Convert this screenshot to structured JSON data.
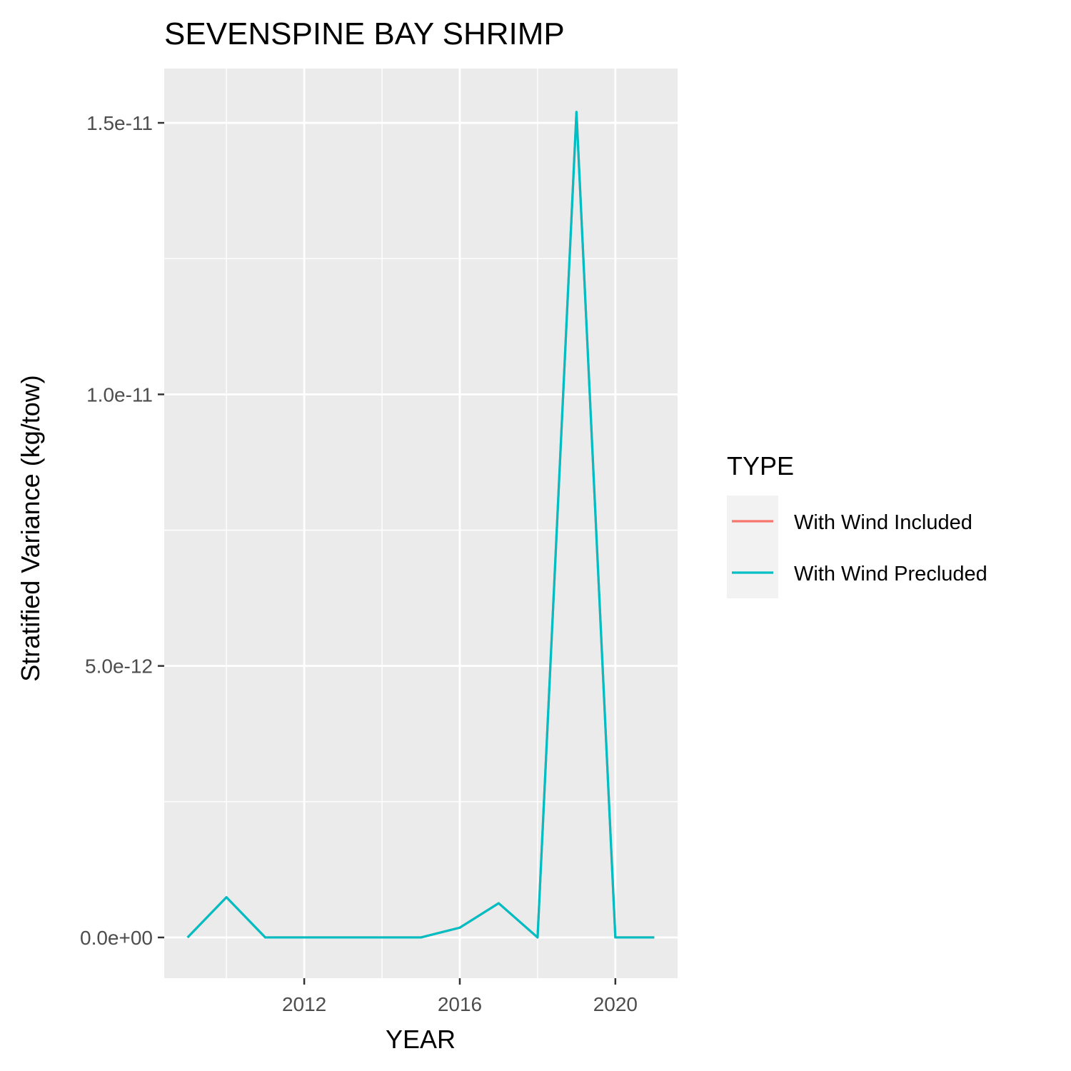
{
  "chart_data": {
    "type": "line",
    "title": "SEVENSPINE BAY SHRIMP",
    "xlabel": "YEAR",
    "ylabel": "Stratified Variance (kg/tow)",
    "x_ticks": [
      {
        "value": 2012,
        "label": "2012"
      },
      {
        "value": 2016,
        "label": "2016"
      },
      {
        "value": 2020,
        "label": "2020"
      }
    ],
    "y_ticks": [
      {
        "value": 0,
        "label": "0.0e+00"
      },
      {
        "value": 5e-12,
        "label": "5.0e-12"
      },
      {
        "value": 1e-11,
        "label": "1.0e-11"
      },
      {
        "value": 1.5e-11,
        "label": "1.5e-11"
      }
    ],
    "xlim": [
      2008.4,
      2021.6
    ],
    "ylim": [
      -7.5e-13,
      1.6e-11
    ],
    "grid": true,
    "legend": {
      "title": "TYPE",
      "position": "right"
    },
    "x": [
      2009,
      2010,
      2011,
      2012,
      2013,
      2014,
      2015,
      2016,
      2017,
      2018,
      2019,
      2020,
      2021
    ],
    "series": [
      {
        "name": "With Wind Included",
        "color": "#F8766D",
        "values": [
          0,
          7.4e-13,
          0,
          0,
          0,
          0,
          0,
          1.8e-13,
          6.3e-13,
          0,
          1.52e-11,
          0,
          0
        ]
      },
      {
        "name": "With Wind Precluded",
        "color": "#00BFC4",
        "values": [
          0,
          7.4e-13,
          0,
          0,
          0,
          0,
          0,
          1.8e-13,
          6.3e-13,
          0,
          1.52e-11,
          0,
          0
        ]
      }
    ]
  }
}
